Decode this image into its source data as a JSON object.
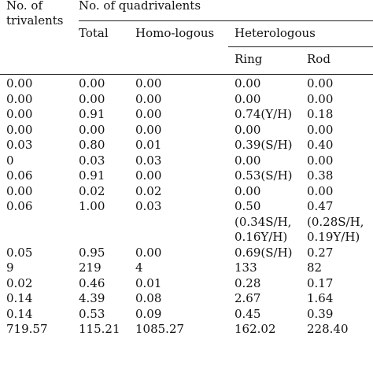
{
  "header": {
    "trivalents_line1": "No. of",
    "trivalents_line2": "trivalents",
    "quadrivalents": "No. of quadrivalents",
    "total": "Total",
    "homologous": "Homo-logous",
    "heterologous": "Heterologous",
    "ring": "Ring",
    "rod": "Rod"
  },
  "rows": [
    {
      "tri": "0.00",
      "total": "0.00",
      "homo": "0.00",
      "ring": [
        "0.00"
      ],
      "rod": [
        "0.00"
      ]
    },
    {
      "tri": "0.00",
      "total": "0.00",
      "homo": "0.00",
      "ring": [
        "0.00"
      ],
      "rod": [
        "0.00"
      ]
    },
    {
      "tri": "0.00",
      "total": "0.91",
      "homo": "0.00",
      "ring": [
        "0.74(Y/H)"
      ],
      "rod": [
        "0.18"
      ]
    },
    {
      "tri": "0.00",
      "total": "0.00",
      "homo": "0.00",
      "ring": [
        "0.00"
      ],
      "rod": [
        "0.00"
      ]
    },
    {
      "tri": "0.03",
      "total": "0.80",
      "homo": "0.01",
      "ring": [
        "0.39(S/H)"
      ],
      "rod": [
        "0.40"
      ]
    },
    {
      "tri": "0",
      "total": "0.03",
      "homo": "0.03",
      "ring": [
        "0.00"
      ],
      "rod": [
        "0.00"
      ]
    },
    {
      "tri": "0.06",
      "total": "0.91",
      "homo": "0.00",
      "ring": [
        "0.53(S/H)"
      ],
      "rod": [
        "0.38"
      ]
    },
    {
      "tri": "0.00",
      "total": "0.02",
      "homo": "0.02",
      "ring": [
        "0.00"
      ],
      "rod": [
        "0.00"
      ]
    },
    {
      "tri": "0.06",
      "total": "1.00",
      "homo": "0.03",
      "ring": [
        "0.50",
        "(0.34S/H,",
        "0.16Y/H)"
      ],
      "rod": [
        "0.47",
        "(0.28S/H,",
        "0.19Y/H)"
      ]
    },
    {
      "tri": "0.05",
      "total": "0.95",
      "homo": "0.00",
      "ring": [
        "0.69(S/H)"
      ],
      "rod": [
        "0.27"
      ]
    },
    {
      "tri": "9",
      "total": "219",
      "homo": "4",
      "ring": [
        "133"
      ],
      "rod": [
        "82"
      ]
    },
    {
      "tri": "0.02",
      "total": "0.46",
      "homo": "0.01",
      "ring": [
        "0.28"
      ],
      "rod": [
        "0.17"
      ]
    },
    {
      "tri": "0.14",
      "total": "4.39",
      "homo": "0.08",
      "ring": [
        "2.67"
      ],
      "rod": [
        "1.64"
      ]
    },
    {
      "tri": "0.14",
      "total": "0.53",
      "homo": "0.09",
      "ring": [
        "0.45"
      ],
      "rod": [
        "0.39"
      ]
    },
    {
      "tri": "719.57",
      "total": "115.21",
      "homo": "1085.27",
      "ring": [
        "162.02"
      ],
      "rod": [
        "228.40"
      ]
    }
  ]
}
